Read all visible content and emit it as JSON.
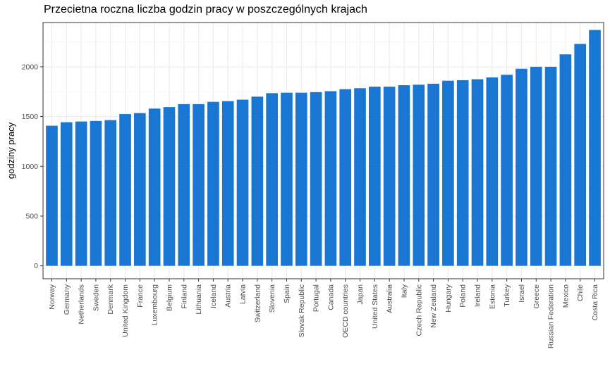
{
  "chart_data": {
    "type": "bar",
    "title": "Przecietna roczna liczba godzin pracy w poszczególnych krajach",
    "xlabel": "",
    "ylabel": "godziny pracy",
    "ylim": [
      -130,
      2445
    ],
    "yticks": [
      0,
      500,
      1000,
      1500,
      2000
    ],
    "grid": true,
    "bar_color": "#1976d2",
    "categories": [
      "Norway",
      "Germany",
      "Netherlands",
      "Sweden",
      "Denmark",
      "United Kingdom",
      "France",
      "Luxembourg",
      "Belgium",
      "Finland",
      "Lithuania",
      "Iceland",
      "Austria",
      "Latvia",
      "Switzerland",
      "Slovenia",
      "Spain",
      "Slovak Republic",
      "Portugal",
      "Canada",
      "OECD countries",
      "Japan",
      "United States",
      "Australia",
      "Italy",
      "Czech Republic",
      "New Zealand",
      "Hungary",
      "Poland",
      "Ireland",
      "Estonia",
      "Turkey",
      "Israel",
      "Greece",
      "Russian Federation",
      "Mexico",
      "Chile",
      "Costa Rica"
    ],
    "values": [
      1408,
      1443,
      1450,
      1456,
      1464,
      1525,
      1535,
      1580,
      1595,
      1625,
      1625,
      1648,
      1655,
      1670,
      1700,
      1735,
      1740,
      1740,
      1745,
      1755,
      1775,
      1785,
      1800,
      1800,
      1815,
      1820,
      1830,
      1860,
      1865,
      1875,
      1893,
      1920,
      1980,
      2000,
      2000,
      2125,
      2230,
      2370
    ]
  }
}
